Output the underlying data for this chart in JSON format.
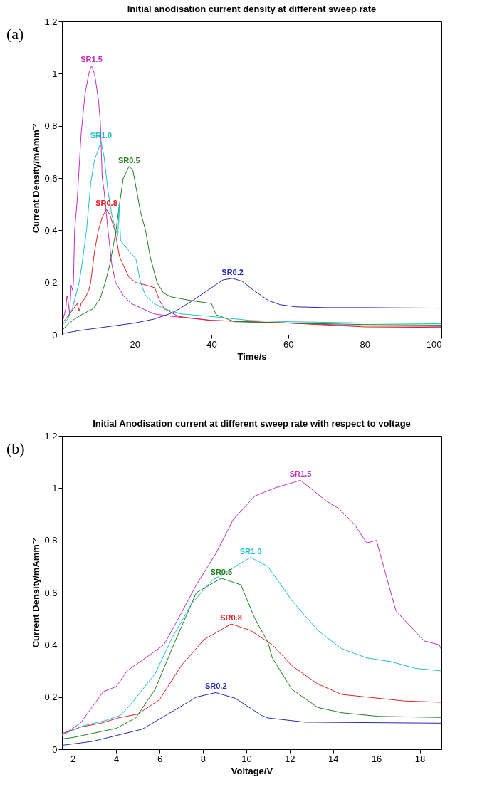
{
  "chart_data": [
    {
      "type": "line",
      "title": "Initial anodisation current density at different sweep rate",
      "xlabel": "Time/s",
      "ylabel": "Current Density/mAmm⁻²",
      "annotations": [
        "(a)"
      ],
      "xlim": [
        1,
        100
      ],
      "xticks": [
        20,
        40,
        60,
        80,
        100
      ],
      "ylim": [
        0,
        1.2
      ],
      "yticks": [
        0,
        0.2,
        0.4,
        0.6,
        0.8,
        1,
        1.2
      ],
      "grid": false,
      "series": [
        {
          "name": "SR1.5",
          "color": "#c030c0",
          "x": [
            1.3,
            2,
            2.3,
            2.6,
            3,
            3.4,
            3.8,
            4,
            4.3,
            5,
            6,
            7,
            8,
            8.7,
            9.5,
            10.5,
            11,
            11.5,
            12,
            13,
            14,
            15,
            17,
            19,
            22,
            25,
            30,
            40,
            60,
            80,
            100
          ],
          "values": [
            0.06,
            0.1,
            0.15,
            0.13,
            0.08,
            0.19,
            0.17,
            0.2,
            0.4,
            0.52,
            0.77,
            0.92,
            1.0,
            1.03,
            1.0,
            0.9,
            0.82,
            0.6,
            0.55,
            0.4,
            0.27,
            0.2,
            0.15,
            0.12,
            0.1,
            0.08,
            0.07,
            0.055,
            0.045,
            0.034,
            0.032
          ]
        },
        {
          "name": "SR1.0",
          "color": "#20c0c8",
          "x": [
            1.3,
            2.5,
            3.7,
            5.5,
            6.5,
            7.4,
            8.5,
            9.5,
            10.5,
            11.2,
            12,
            13,
            14,
            15,
            15.6,
            15.9,
            16.3,
            18,
            20.3,
            21.5,
            22.8,
            25,
            27.7,
            32,
            40,
            50,
            60,
            80,
            100
          ],
          "values": [
            0.04,
            0.06,
            0.1,
            0.2,
            0.3,
            0.4,
            0.58,
            0.67,
            0.71,
            0.74,
            0.68,
            0.55,
            0.46,
            0.4,
            0.38,
            0.5,
            0.36,
            0.33,
            0.29,
            0.2,
            0.15,
            0.12,
            0.1,
            0.08,
            0.07,
            0.055,
            0.05,
            0.045,
            0.042
          ]
        },
        {
          "name": "SR0.5",
          "color": "#208020",
          "x": [
            1.3,
            2.5,
            4.3,
            6.5,
            9.2,
            11,
            12.3,
            13.5,
            14.5,
            15.1,
            16,
            17,
            18.5,
            19.5,
            20.5,
            21.5,
            22.8,
            24,
            25.8,
            27.5,
            29.5,
            35,
            40,
            41.2,
            46,
            60,
            80,
            100
          ],
          "values": [
            0.02,
            0.04,
            0.06,
            0.08,
            0.1,
            0.14,
            0.2,
            0.27,
            0.35,
            0.4,
            0.5,
            0.6,
            0.645,
            0.63,
            0.55,
            0.47,
            0.4,
            0.3,
            0.2,
            0.16,
            0.145,
            0.13,
            0.12,
            0.077,
            0.05,
            0.045,
            0.039,
            0.037
          ]
        },
        {
          "name": "SR0.8",
          "color": "#e02020",
          "x": [
            1.3,
            2,
            3,
            4,
            5,
            5.5,
            6,
            7,
            8,
            8.5,
            9.5,
            10.5,
            11.5,
            12.6,
            13.5,
            14.8,
            16,
            17.2,
            18.5,
            20.3,
            23,
            25.2,
            26.5,
            27.7,
            31.4,
            40,
            60,
            80,
            100
          ],
          "values": [
            0.05,
            0.06,
            0.08,
            0.1,
            0.12,
            0.09,
            0.12,
            0.14,
            0.17,
            0.2,
            0.32,
            0.4,
            0.45,
            0.48,
            0.46,
            0.4,
            0.3,
            0.26,
            0.22,
            0.2,
            0.19,
            0.18,
            0.13,
            0.1,
            0.07,
            0.055,
            0.045,
            0.03,
            0.028
          ]
        },
        {
          "name": "SR0.2",
          "color": "#2828b0",
          "x": [
            1.3,
            5,
            10,
            15,
            20,
            25,
            30,
            35,
            40,
            43,
            45.5,
            48,
            51,
            55,
            58,
            62,
            70,
            80,
            90,
            100
          ],
          "values": [
            0.005,
            0.015,
            0.025,
            0.035,
            0.045,
            0.06,
            0.085,
            0.13,
            0.18,
            0.21,
            0.216,
            0.205,
            0.17,
            0.13,
            0.115,
            0.107,
            0.104,
            0.104,
            0.103,
            0.102
          ]
        }
      ]
    },
    {
      "type": "line",
      "title": "Initial Anodisation current at different sweep rate with respect to voltage",
      "xlabel": "Voltage/V",
      "ylabel": "Current Density/mAmm⁻²",
      "annotations": [
        "(b)"
      ],
      "xlim": [
        1.5,
        19
      ],
      "xticks": [
        2,
        4,
        6,
        8,
        10,
        12,
        14,
        16,
        18
      ],
      "ylim": [
        0,
        1.2
      ],
      "yticks": [
        0,
        0.2,
        0.4,
        0.6,
        0.8,
        1,
        1.2
      ],
      "grid": false,
      "series": [
        {
          "name": "SR1.5",
          "color": "#c030c0",
          "x": [
            1.5,
            2.35,
            3.4,
            4,
            4.5,
            5.7,
            6.2,
            6.8,
            7.7,
            8.6,
            9.4,
            10.4,
            11.3,
            12.5,
            13.7,
            14.3,
            15,
            15.55,
            16,
            16.9,
            18.2,
            18.9,
            19
          ],
          "values": [
            0.054,
            0.1,
            0.22,
            0.24,
            0.3,
            0.37,
            0.4,
            0.49,
            0.63,
            0.75,
            0.88,
            0.97,
            1.0,
            1.03,
            0.95,
            0.92,
            0.86,
            0.79,
            0.8,
            0.53,
            0.415,
            0.4,
            0.38
          ]
        },
        {
          "name": "SR1.0",
          "color": "#20c0c8",
          "x": [
            1.5,
            2.5,
            3.5,
            4.2,
            4.65,
            5.8,
            6.6,
            7.5,
            8.4,
            9.3,
            10.2,
            11,
            12.1,
            13.3,
            14.4,
            15.55,
            16.7,
            17.8,
            19
          ],
          "values": [
            0.055,
            0.09,
            0.11,
            0.13,
            0.17,
            0.29,
            0.43,
            0.56,
            0.645,
            0.69,
            0.735,
            0.7,
            0.57,
            0.455,
            0.385,
            0.35,
            0.335,
            0.31,
            0.3
          ]
        },
        {
          "name": "SR0.5",
          "color": "#208020",
          "x": [
            1.5,
            2,
            4,
            4.9,
            5.8,
            6.7,
            7.7,
            8.85,
            9.75,
            10.4,
            11,
            11.2,
            12.1,
            13.3,
            14.4,
            16.1,
            19
          ],
          "values": [
            0.04,
            0.045,
            0.08,
            0.12,
            0.23,
            0.41,
            0.6,
            0.655,
            0.63,
            0.5,
            0.41,
            0.35,
            0.23,
            0.16,
            0.14,
            0.126,
            0.122
          ]
        },
        {
          "name": "SR0.8",
          "color": "#e02020",
          "x": [
            1.5,
            2.4,
            3.3,
            4.1,
            5,
            6,
            7,
            8.05,
            9.3,
            10.2,
            11.2,
            12.1,
            13.3,
            14.4,
            15.55,
            17.3,
            19
          ],
          "values": [
            0.06,
            0.086,
            0.1,
            0.12,
            0.135,
            0.19,
            0.32,
            0.42,
            0.48,
            0.455,
            0.4,
            0.32,
            0.25,
            0.21,
            0.2,
            0.185,
            0.18
          ]
        },
        {
          "name": "SR0.2",
          "color": "#2828b0",
          "x": [
            1.5,
            2.9,
            5.2,
            6.7,
            7.7,
            8.6,
            9.5,
            10.7,
            11,
            12.7,
            19
          ],
          "values": [
            0.015,
            0.03,
            0.077,
            0.15,
            0.2,
            0.217,
            0.195,
            0.13,
            0.12,
            0.104,
            0.1
          ]
        }
      ]
    }
  ]
}
